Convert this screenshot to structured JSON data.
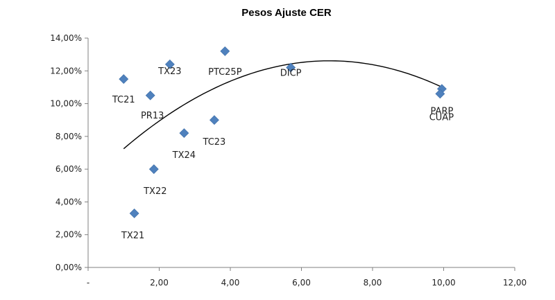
{
  "chart_data": {
    "type": "scatter",
    "title": "Pesos Ajuste CER",
    "xlabel": "",
    "ylabel": "",
    "xlim": [
      0,
      12
    ],
    "ylim": [
      0,
      0.14
    ],
    "x_tick_labels": [
      "-",
      "2,00",
      "4,00",
      "6,00",
      "8,00",
      "10,00",
      "12,00"
    ],
    "x_tick_values": [
      0,
      2,
      4,
      6,
      8,
      10,
      12
    ],
    "y_tick_labels": [
      "0,00%",
      "2,00%",
      "4,00%",
      "6,00%",
      "8,00%",
      "10,00%",
      "12,00%",
      "14,00%"
    ],
    "y_tick_values": [
      0,
      0.02,
      0.04,
      0.06,
      0.08,
      0.1,
      0.12,
      0.14
    ],
    "marker_color": "#4f81bd",
    "trendline_color": "#000000",
    "points": [
      {
        "label": "TC21",
        "x": 1.0,
        "y": 0.115
      },
      {
        "label": "TX23",
        "x": 2.3,
        "y": 0.124
      },
      {
        "label": "PR13",
        "x": 1.75,
        "y": 0.105
      },
      {
        "label": "PTC25P",
        "x": 3.85,
        "y": 0.132
      },
      {
        "label": "DICP",
        "x": 5.7,
        "y": 0.122
      },
      {
        "label": "PARP",
        "x": 9.95,
        "y": 0.109
      },
      {
        "label": "CUAP",
        "x": 9.9,
        "y": 0.106
      },
      {
        "label": "TX24",
        "x": 2.7,
        "y": 0.082
      },
      {
        "label": "TC23",
        "x": 3.55,
        "y": 0.09
      },
      {
        "label": "TX22",
        "x": 1.85,
        "y": 0.06
      },
      {
        "label": "TX21",
        "x": 1.3,
        "y": 0.033
      }
    ],
    "trendline": {
      "type": "polynomial",
      "x_range": [
        1.0,
        10.0
      ],
      "coefficients": [
        0.0523,
        0.02176,
        -0.001603
      ]
    }
  }
}
